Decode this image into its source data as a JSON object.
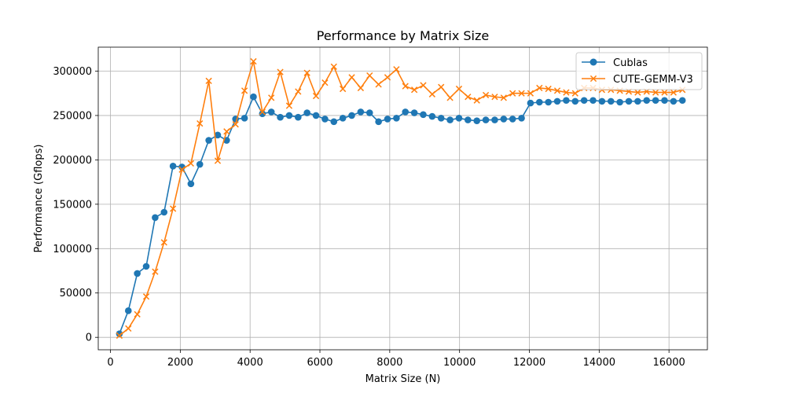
{
  "chart_data": {
    "type": "line",
    "title": "Performance by Matrix Size",
    "xlabel": "Matrix Size (N)",
    "ylabel": "Performance (Gflops)",
    "xlim": [
      -350,
      17100
    ],
    "ylim": [
      -14000,
      327000
    ],
    "xticks": [
      0,
      2000,
      4000,
      6000,
      8000,
      10000,
      12000,
      14000,
      16000
    ],
    "yticks": [
      0,
      50000,
      100000,
      150000,
      200000,
      250000,
      300000
    ],
    "grid": true,
    "legend_position": "upper-right",
    "x": [
      256,
      512,
      768,
      1024,
      1280,
      1536,
      1792,
      2048,
      2304,
      2560,
      2816,
      3072,
      3328,
      3584,
      3840,
      4096,
      4352,
      4608,
      4864,
      5120,
      5376,
      5632,
      5888,
      6144,
      6400,
      6656,
      6912,
      7168,
      7424,
      7680,
      7936,
      8192,
      8448,
      8704,
      8960,
      9216,
      9472,
      9728,
      9984,
      10240,
      10496,
      10752,
      11008,
      11264,
      11520,
      11776,
      12032,
      12288,
      12544,
      12800,
      13056,
      13312,
      13568,
      13824,
      14080,
      14336,
      14592,
      14848,
      15104,
      15360,
      15616,
      15872,
      16128,
      16384
    ],
    "series": [
      {
        "name": "Cublas",
        "color": "#1f77b4",
        "marker": "circle",
        "values": [
          4000,
          30000,
          72000,
          80000,
          135000,
          141000,
          193000,
          192000,
          173000,
          195000,
          222000,
          228000,
          222000,
          246000,
          247000,
          271000,
          252000,
          254000,
          248000,
          250000,
          248000,
          253000,
          250000,
          246000,
          243000,
          247000,
          250000,
          254000,
          253000,
          243000,
          246000,
          247000,
          254000,
          253000,
          251000,
          249000,
          247000,
          245000,
          247000,
          245000,
          244000,
          245000,
          245000,
          246000,
          246000,
          247000,
          264000,
          265000,
          265000,
          266000,
          267000,
          266000,
          267000,
          267000,
          266000,
          266000,
          265000,
          266000,
          266000,
          267000,
          267000,
          267000,
          266000,
          267000
        ]
      },
      {
        "name": "CUTE-GEMM-V3",
        "color": "#ff7f0e",
        "marker": "x",
        "values": [
          2000,
          10000,
          26000,
          46000,
          74000,
          107000,
          145000,
          189000,
          196000,
          241000,
          289000,
          199000,
          232000,
          240000,
          278000,
          311000,
          254000,
          270000,
          299000,
          261000,
          277000,
          298000,
          272000,
          287000,
          305000,
          280000,
          293000,
          281000,
          295000,
          285000,
          293000,
          302000,
          283000,
          279000,
          284000,
          274000,
          282000,
          270000,
          280000,
          271000,
          267000,
          273000,
          271000,
          270000,
          275000,
          275000,
          275000,
          281000,
          280000,
          278000,
          276000,
          275000,
          281000,
          281000,
          279000,
          279000,
          278000,
          277000,
          276000,
          277000,
          276000,
          276000,
          276000,
          279000
        ]
      }
    ]
  }
}
